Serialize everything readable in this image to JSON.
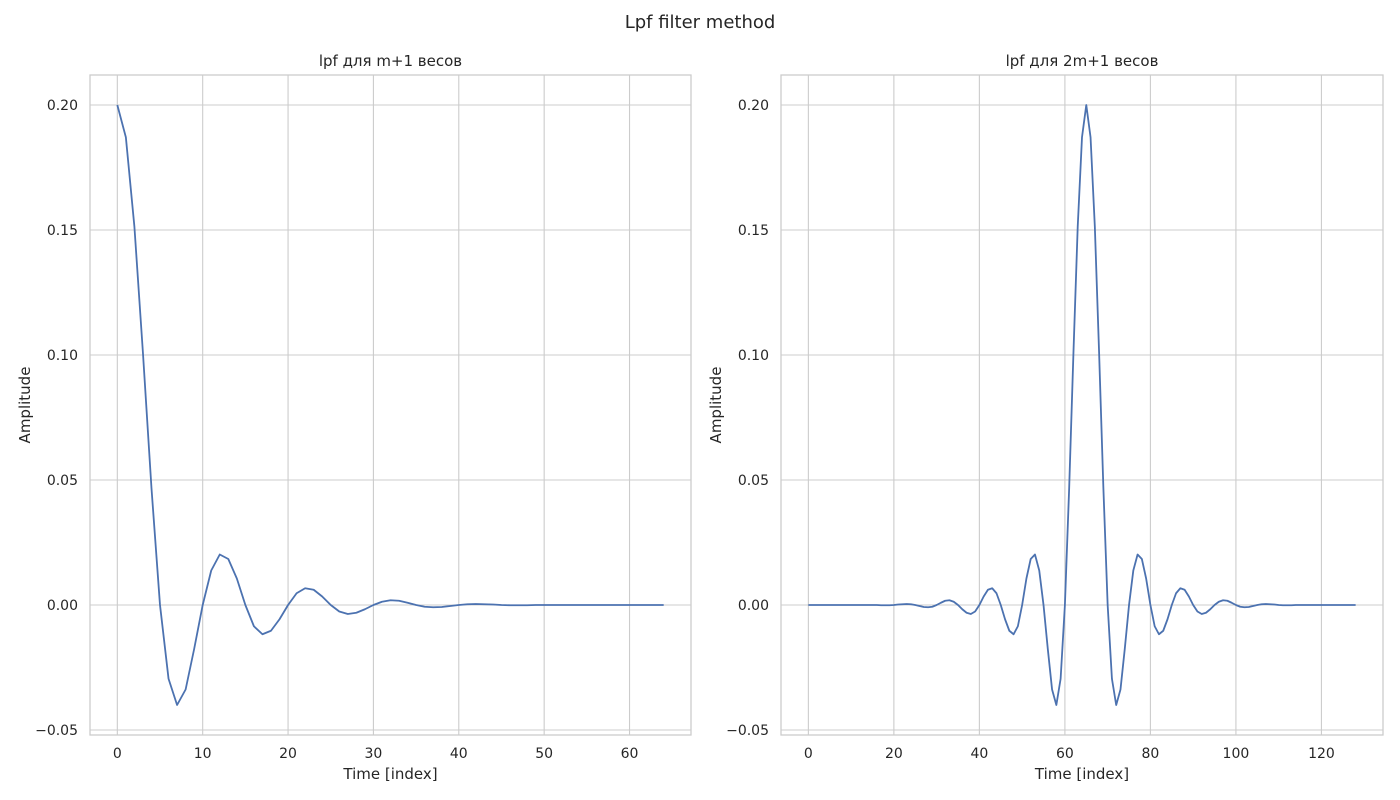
{
  "figure": {
    "title": "Lpf filter method"
  },
  "chart_data": [
    {
      "type": "line",
      "title": "lpf для m+1 весов",
      "xlabel": "Time [index]",
      "ylabel": "Amplitude",
      "xlim": [
        -3.2,
        67.2
      ],
      "ylim": [
        -0.052,
        0.212
      ],
      "x_ticks": [
        0,
        10,
        20,
        30,
        40,
        50,
        60
      ],
      "y_ticks": [
        -0.05,
        0.0,
        0.05,
        0.1,
        0.15,
        0.2
      ],
      "y_tick_labels": [
        "−0.05",
        "0.00",
        "0.05",
        "0.10",
        "0.15",
        "0.20"
      ],
      "grid": true,
      "color": "#4c72b0",
      "series": [
        {
          "x": [
            0,
            1,
            2,
            3,
            4,
            5,
            6,
            7,
            8,
            9,
            10,
            11,
            12,
            13,
            14,
            15,
            16,
            17,
            18,
            19,
            20,
            21,
            22,
            23,
            24,
            25,
            26,
            27,
            28,
            29,
            30,
            31,
            32,
            33,
            34,
            35,
            36,
            37,
            38,
            39,
            40,
            41,
            42,
            43,
            44,
            45,
            46,
            47,
            48,
            49,
            50,
            51,
            52,
            53,
            54,
            55,
            56,
            57,
            58,
            59,
            60,
            61,
            62,
            63,
            64
          ],
          "y": [
            0.2,
            0.1871,
            0.1514,
            0.1009,
            0.0468,
            0.0,
            -0.0295,
            -0.04,
            -0.0338,
            -0.0176,
            0.0,
            0.0138,
            0.0202,
            0.0184,
            0.0106,
            0.0,
            -0.0085,
            -0.0117,
            -0.0103,
            -0.0057,
            0.0,
            0.0047,
            0.0067,
            0.0061,
            0.0034,
            0.0,
            -0.0026,
            -0.0036,
            -0.0031,
            -0.0017,
            0.0,
            0.0013,
            0.0019,
            0.0017,
            0.0009,
            0.0,
            -0.0007,
            -0.0009,
            -0.0008,
            -0.0004,
            0.0,
            0.0003,
            0.0004,
            0.0003,
            0.0002,
            0.0,
            -0.0001,
            -0.0001,
            -0.0001,
            0.0,
            0.0,
            0.0,
            0.0,
            0.0,
            0.0,
            0.0,
            0.0,
            0.0,
            0.0,
            0.0,
            0.0,
            0.0,
            0.0,
            0.0,
            0.0
          ]
        }
      ]
    },
    {
      "type": "line",
      "title": "lpf для 2m+1 весов",
      "xlabel": "Time [index]",
      "ylabel": "Amplitude",
      "xlim": [
        -6.4,
        134.4
      ],
      "ylim": [
        -0.052,
        0.212
      ],
      "x_ticks": [
        0,
        20,
        40,
        60,
        80,
        100,
        120
      ],
      "y_ticks": [
        -0.05,
        0.0,
        0.05,
        0.1,
        0.15,
        0.2
      ],
      "y_tick_labels": [
        "−0.05",
        "0.00",
        "0.05",
        "0.10",
        "0.15",
        "0.20"
      ],
      "grid": true,
      "color": "#4c72b0",
      "series": [
        {
          "x": [
            0,
            1,
            2,
            3,
            4,
            5,
            6,
            7,
            8,
            9,
            10,
            11,
            12,
            13,
            14,
            15,
            16,
            17,
            18,
            19,
            20,
            21,
            22,
            23,
            24,
            25,
            26,
            27,
            28,
            29,
            30,
            31,
            32,
            33,
            34,
            35,
            36,
            37,
            38,
            39,
            40,
            41,
            42,
            43,
            44,
            45,
            46,
            47,
            48,
            49,
            50,
            51,
            52,
            53,
            54,
            55,
            56,
            57,
            58,
            59,
            60,
            61,
            62,
            63,
            64,
            65,
            66,
            67,
            68,
            69,
            70,
            71,
            72,
            73,
            74,
            75,
            76,
            77,
            78,
            79,
            80,
            81,
            82,
            83,
            84,
            85,
            86,
            87,
            88,
            89,
            90,
            91,
            92,
            93,
            94,
            95,
            96,
            97,
            98,
            99,
            100,
            101,
            102,
            103,
            104,
            105,
            106,
            107,
            108,
            109,
            110,
            111,
            112,
            113,
            114,
            115,
            116,
            117,
            118,
            119,
            120,
            121,
            122,
            123,
            124,
            125,
            126,
            127,
            128
          ],
          "y": [
            0.0,
            0.0,
            0.0,
            0.0,
            0.0,
            0.0,
            0.0,
            0.0,
            0.0,
            0.0,
            0.0,
            0.0,
            0.0,
            0.0,
            0.0,
            0.0,
            0.0,
            -0.0001,
            -0.0001,
            -0.0001,
            0.0,
            0.0002,
            0.0003,
            0.0004,
            0.0003,
            0.0,
            -0.0004,
            -0.0008,
            -0.0009,
            -0.0007,
            0.0,
            0.0009,
            0.0017,
            0.0019,
            0.0013,
            0.0,
            -0.0017,
            -0.0031,
            -0.0036,
            -0.0026,
            0.0,
            0.0034,
            0.0061,
            0.0067,
            0.0047,
            0.0,
            -0.0057,
            -0.0103,
            -0.0117,
            -0.0085,
            0.0,
            0.0106,
            0.0184,
            0.0202,
            0.0138,
            0.0,
            -0.0176,
            -0.0338,
            -0.04,
            -0.0295,
            0.0,
            0.0468,
            0.1009,
            0.1514,
            0.1871,
            0.2,
            0.1871,
            0.1514,
            0.1009,
            0.0468,
            0.0,
            -0.0295,
            -0.04,
            -0.0338,
            -0.0176,
            0.0,
            0.0138,
            0.0202,
            0.0184,
            0.0106,
            0.0,
            -0.0085,
            -0.0117,
            -0.0103,
            -0.0057,
            0.0,
            0.0047,
            0.0067,
            0.0061,
            0.0034,
            0.0,
            -0.0026,
            -0.0036,
            -0.0031,
            -0.0017,
            0.0,
            0.0013,
            0.0019,
            0.0017,
            0.0009,
            0.0,
            -0.0007,
            -0.0009,
            -0.0008,
            -0.0004,
            0.0,
            0.0003,
            0.0004,
            0.0003,
            0.0002,
            0.0,
            -0.0001,
            -0.0001,
            -0.0001,
            0.0,
            0.0,
            0.0,
            0.0,
            0.0,
            0.0,
            0.0,
            0.0,
            0.0,
            0.0,
            0.0,
            0.0,
            0.0,
            0.0,
            0.0
          ]
        }
      ]
    }
  ]
}
